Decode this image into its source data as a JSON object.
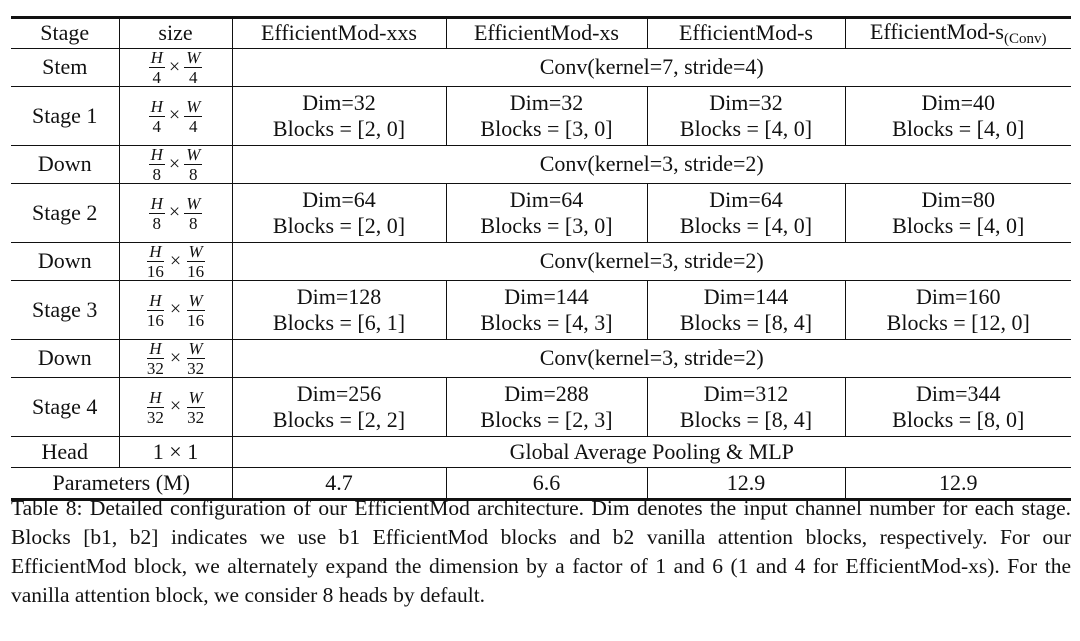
{
  "table": {
    "headers": {
      "stage": "Stage",
      "size": "size",
      "xxs": "EfficientMod-xxs",
      "xs": "EfficientMod-xs",
      "s": "EfficientMod-s",
      "s_conv_base": "EfficientMod-s",
      "s_conv_sub": "(Conv)"
    },
    "times_symbol": "×",
    "stem": {
      "label": "Stem",
      "size_num": "H",
      "size_den": "4",
      "size_num2": "W",
      "size_den2": "4",
      "text": "Conv(kernel=7, stride=4)"
    },
    "stage1": {
      "label": "Stage 1",
      "size_num": "H",
      "size_den": "4",
      "size_num2": "W",
      "size_den2": "4",
      "cells": [
        {
          "dim": "Dim=32",
          "blocks": "Blocks = [2, 0]"
        },
        {
          "dim": "Dim=32",
          "blocks": "Blocks = [3, 0]"
        },
        {
          "dim": "Dim=32",
          "blocks": "Blocks = [4, 0]"
        },
        {
          "dim": "Dim=40",
          "blocks": "Blocks = [4, 0]"
        }
      ]
    },
    "down1": {
      "label": "Down",
      "size_num": "H",
      "size_den": "8",
      "size_num2": "W",
      "size_den2": "8",
      "text": "Conv(kernel=3, stride=2)"
    },
    "stage2": {
      "label": "Stage 2",
      "size_num": "H",
      "size_den": "8",
      "size_num2": "W",
      "size_den2": "8",
      "cells": [
        {
          "dim": "Dim=64",
          "blocks": "Blocks = [2, 0]"
        },
        {
          "dim": "Dim=64",
          "blocks": "Blocks = [3, 0]"
        },
        {
          "dim": "Dim=64",
          "blocks": "Blocks = [4, 0]"
        },
        {
          "dim": "Dim=80",
          "blocks": "Blocks = [4, 0]"
        }
      ]
    },
    "down2": {
      "label": "Down",
      "size_num": "H",
      "size_den": "16",
      "size_num2": "W",
      "size_den2": "16",
      "text": "Conv(kernel=3, stride=2)"
    },
    "stage3": {
      "label": "Stage 3",
      "size_num": "H",
      "size_den": "16",
      "size_num2": "W",
      "size_den2": "16",
      "cells": [
        {
          "dim": "Dim=128",
          "blocks": "Blocks = [6, 1]"
        },
        {
          "dim": "Dim=144",
          "blocks": "Blocks = [4, 3]"
        },
        {
          "dim": "Dim=144",
          "blocks": "Blocks = [8, 4]"
        },
        {
          "dim": "Dim=160",
          "blocks": "Blocks = [12, 0]"
        }
      ]
    },
    "down3": {
      "label": "Down",
      "size_num": "H",
      "size_den": "32",
      "size_num2": "W",
      "size_den2": "32",
      "text": "Conv(kernel=3, stride=2)"
    },
    "stage4": {
      "label": "Stage 4",
      "size_num": "H",
      "size_den": "32",
      "size_num2": "W",
      "size_den2": "32",
      "cells": [
        {
          "dim": "Dim=256",
          "blocks": "Blocks = [2, 2]"
        },
        {
          "dim": "Dim=288",
          "blocks": "Blocks = [2, 3]"
        },
        {
          "dim": "Dim=312",
          "blocks": "Blocks = [8, 4]"
        },
        {
          "dim": "Dim=344",
          "blocks": "Blocks = [8, 0]"
        }
      ]
    },
    "head": {
      "label": "Head",
      "size": "1 × 1",
      "text": "Global Average Pooling & MLP"
    },
    "params": {
      "label": "Parameters (M)",
      "values": [
        "4.7",
        "6.6",
        "12.9",
        "12.9"
      ]
    }
  },
  "caption": "Table 8: Detailed configuration of our EfficientMod architecture. Dim denotes the input channel number for each stage. Blocks [b1, b2] indicates we use b1 EfficientMod blocks and b2 vanilla attention blocks, respectively. For our EfficientMod block, we alternately expand the dimension by a factor of 1 and 6 (1 and 4 for EfficientMod-xs). For the vanilla attention block, we consider 8 heads by default."
}
